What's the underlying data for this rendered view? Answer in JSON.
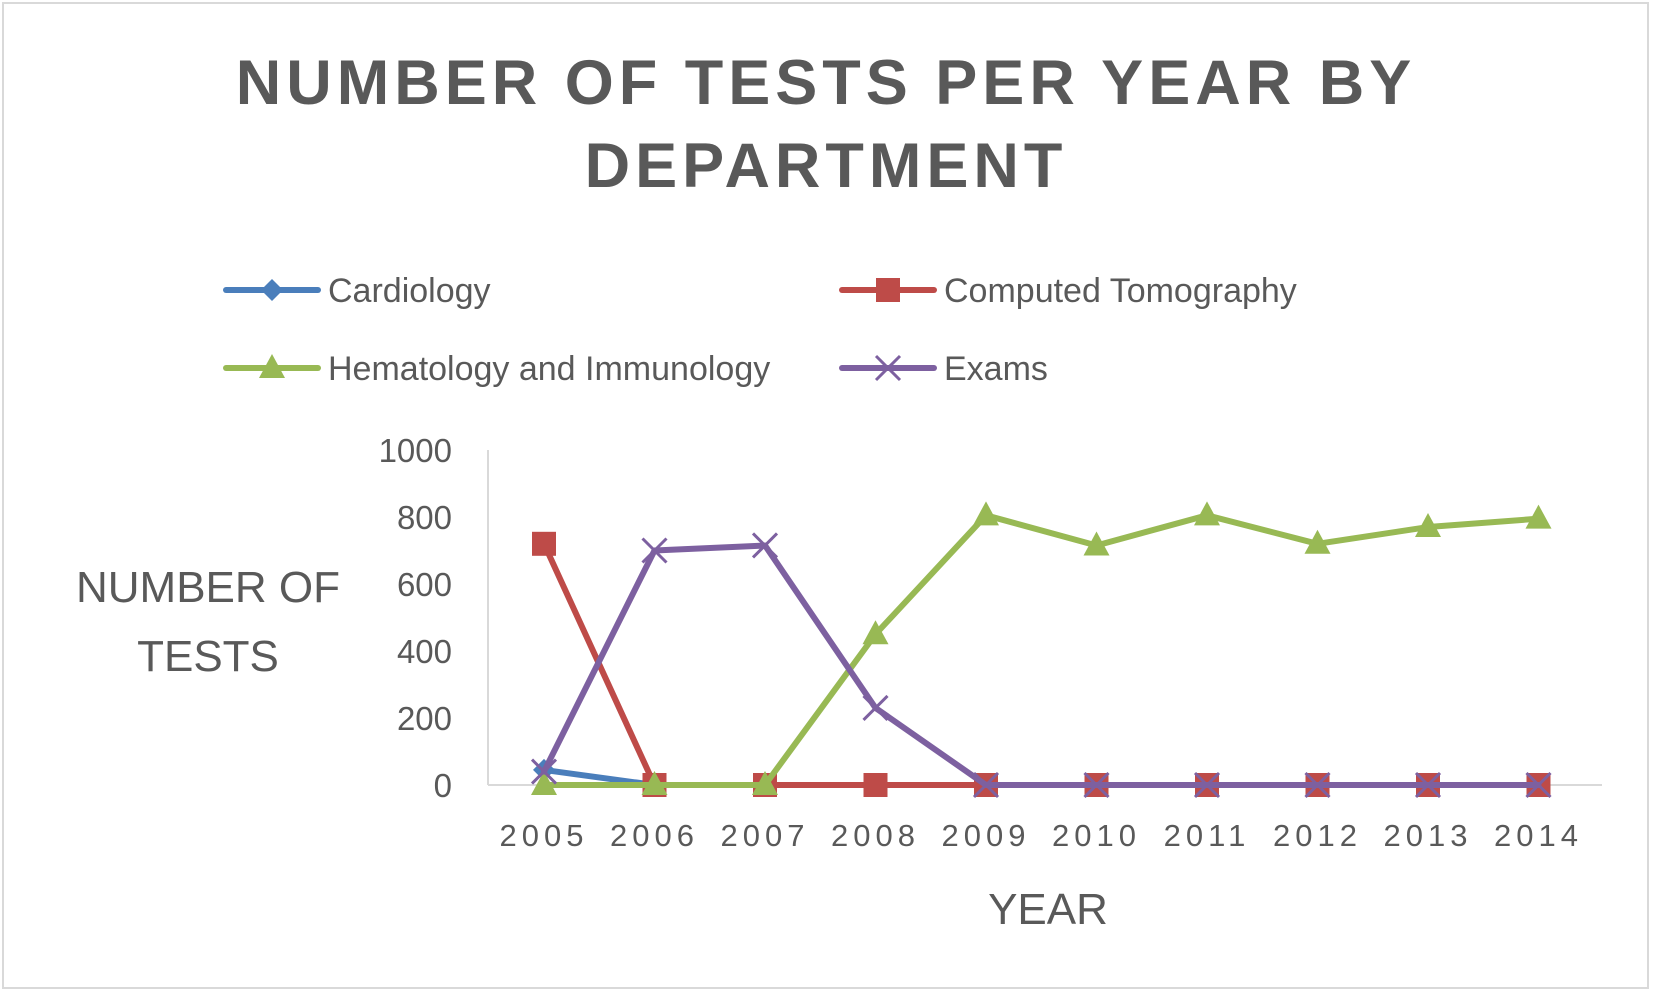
{
  "chart_data": {
    "type": "line",
    "title": "NUMBER OF TESTS PER YEAR BY DEPARTMENT",
    "title_lines": [
      "NUMBER OF TESTS PER YEAR BY",
      "DEPARTMENT"
    ],
    "xlabel": "YEAR",
    "ylabel_lines": [
      "NUMBER OF",
      "TESTS"
    ],
    "categories": [
      "2005",
      "2006",
      "2007",
      "2008",
      "2009",
      "2010",
      "2011",
      "2012",
      "2013",
      "2014"
    ],
    "ylim": [
      0,
      1000
    ],
    "yticks": [
      0,
      200,
      400,
      600,
      800,
      1000
    ],
    "grid": false,
    "legend_position": "top",
    "series": [
      {
        "name": "Cardiology",
        "color": "#4a7ebb",
        "marker": "diamond",
        "values": [
          45,
          0,
          null,
          null,
          null,
          null,
          null,
          null,
          null,
          null
        ]
      },
      {
        "name": "Computed Tomography",
        "color": "#be4b48",
        "marker": "square",
        "values": [
          720,
          0,
          0,
          0,
          0,
          0,
          0,
          0,
          0,
          0
        ]
      },
      {
        "name": "Hematology and Immunology",
        "color": "#98b954",
        "marker": "triangle",
        "values": [
          0,
          0,
          0,
          450,
          805,
          715,
          805,
          720,
          770,
          795
        ]
      },
      {
        "name": "Exams",
        "color": "#7d60a0",
        "marker": "x",
        "values": [
          40,
          700,
          715,
          230,
          0,
          0,
          0,
          0,
          0,
          0
        ]
      }
    ]
  },
  "colors": {
    "title_text": "#595959",
    "axis_text": "#595959",
    "axis_line": "#d9d9d9"
  }
}
